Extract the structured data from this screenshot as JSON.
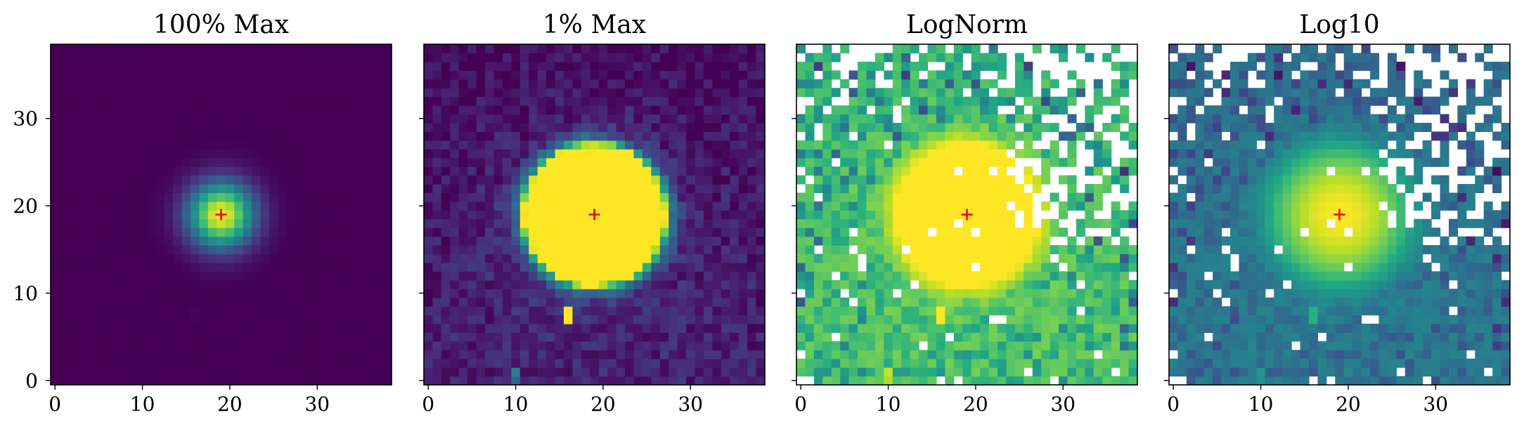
{
  "chart_data": [
    {
      "type": "heatmap",
      "title": "100% Max",
      "grid_size": [
        39,
        39
      ],
      "xlim": [
        -0.5,
        38.5
      ],
      "ylim": [
        -0.5,
        38.5
      ],
      "x_ticks": [
        0,
        10,
        20,
        30
      ],
      "y_ticks": [
        0,
        10,
        20,
        30
      ],
      "show_y_tick_labels": true,
      "colormap": "viridis",
      "scale": "linear",
      "clip_fraction": 1.0,
      "marker": {
        "x": 19,
        "y": 19,
        "symbol": "+",
        "color": "#ff0000"
      },
      "source": {
        "x": 19,
        "y": 19,
        "sigma": 2.6,
        "peak": 1.0,
        "secondary": {
          "x": 16,
          "y": 7.5,
          "peak": 0.013
        }
      },
      "nan_cells": "none"
    },
    {
      "type": "heatmap",
      "title": "1% Max",
      "grid_size": [
        39,
        39
      ],
      "xlim": [
        -0.5,
        38.5
      ],
      "ylim": [
        -0.5,
        38.5
      ],
      "x_ticks": [
        0,
        10,
        20,
        30
      ],
      "y_ticks": [
        0,
        10,
        20,
        30
      ],
      "show_y_tick_labels": false,
      "colormap": "viridis",
      "scale": "linear",
      "clip_fraction": 0.01,
      "marker": {
        "x": 19,
        "y": 19,
        "symbol": "+",
        "color": "#ff0000"
      },
      "source": {
        "x": 19,
        "y": 19,
        "sigma": 2.6,
        "peak": 1.0,
        "secondary": {
          "x": 16,
          "y": 7.5,
          "peak": 0.013
        }
      },
      "nan_cells": "none"
    },
    {
      "type": "heatmap",
      "title": "LogNorm",
      "grid_size": [
        39,
        39
      ],
      "xlim": [
        -0.5,
        38.5
      ],
      "ylim": [
        -0.5,
        38.5
      ],
      "x_ticks": [
        0,
        10,
        20,
        30
      ],
      "y_ticks": [
        0,
        10,
        20,
        30
      ],
      "show_y_tick_labels": false,
      "colormap": "viridis",
      "scale": "log",
      "clip_fraction": 1.0,
      "marker": {
        "x": 19,
        "y": 19,
        "symbol": "+",
        "color": "#ff0000"
      },
      "source": {
        "x": 19,
        "y": 19,
        "sigma": 2.6,
        "peak": 1.0,
        "secondary": {
          "x": 16,
          "y": 7.5,
          "peak": 0.013
        }
      },
      "nan_cells": "non-positive pixels shown white (mostly upper-right)"
    },
    {
      "type": "heatmap",
      "title": "Log10",
      "grid_size": [
        39,
        39
      ],
      "xlim": [
        -0.5,
        38.5
      ],
      "ylim": [
        -0.5,
        38.5
      ],
      "x_ticks": [
        0,
        10,
        20,
        30
      ],
      "y_ticks": [
        0,
        10,
        20,
        30
      ],
      "show_y_tick_labels": false,
      "colormap": "viridis",
      "scale": "log10",
      "clip_fraction": 1.0,
      "marker": {
        "x": 19,
        "y": 19,
        "symbol": "+",
        "color": "#ff0000"
      },
      "source": {
        "x": 19,
        "y": 19,
        "sigma": 2.6,
        "peak": 1.0,
        "secondary": {
          "x": 16,
          "y": 7.5,
          "peak": 0.013
        }
      },
      "nan_cells": "non-positive pixels shown white (mostly upper-right)"
    }
  ]
}
